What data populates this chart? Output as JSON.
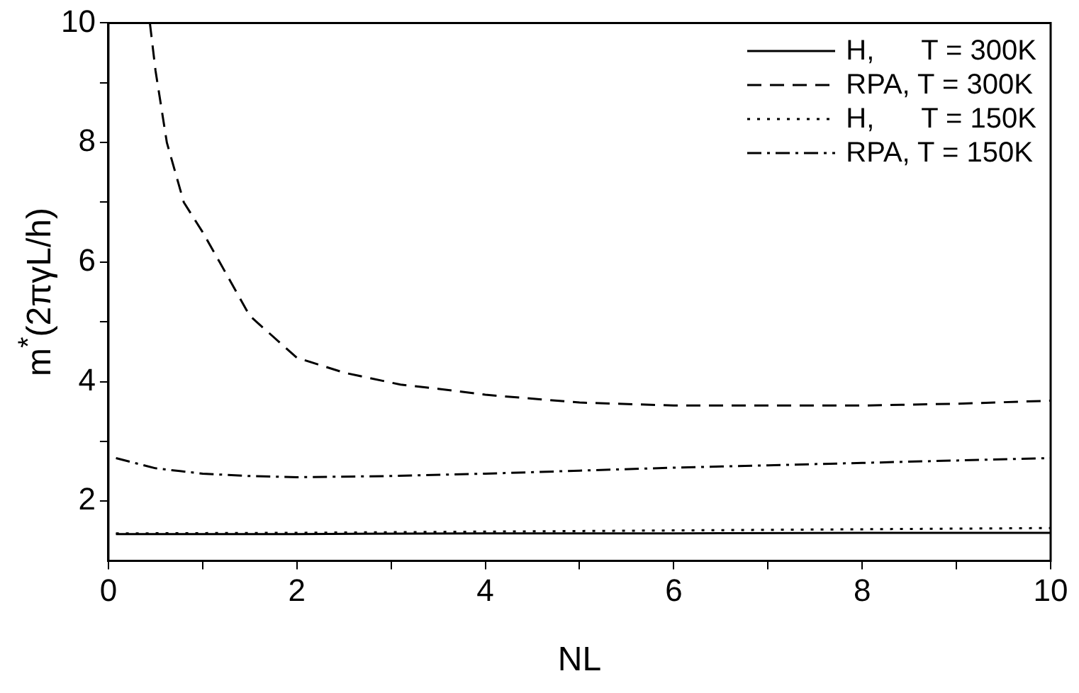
{
  "chart_data": {
    "type": "line",
    "xlabel": "NL",
    "ylabel": "m$^{*}$(2πγL/h)",
    "xlim": [
      0,
      10
    ],
    "ylim": [
      1,
      10
    ],
    "xticks": [
      0,
      {
        "value": 1,
        "label": null
      },
      2,
      {
        "value": 3,
        "label": null
      },
      4,
      {
        "value": 5,
        "label": null
      },
      6,
      {
        "value": 7,
        "label": null
      },
      8,
      {
        "value": 9,
        "label": null
      },
      10
    ],
    "yticks": [
      2,
      {
        "value": 3,
        "label": null
      },
      4,
      {
        "value": 5,
        "label": null
      },
      6,
      {
        "value": 7,
        "label": null
      },
      8,
      {
        "value": 9,
        "label": null
      },
      10
    ],
    "grid": false,
    "legend": "top right",
    "marker": "none",
    "series": [
      {
        "name": "H,      T = 300K",
        "color": "#000000",
        "line_style": "solid",
        "x": [
          0.08,
          2,
          4,
          6,
          8,
          10
        ],
        "values": [
          1.45,
          1.45,
          1.46,
          1.46,
          1.47,
          1.47
        ]
      },
      {
        "name": "RPA, T = 300K",
        "color": "#000000",
        "line_style": "dashed",
        "x": [
          0.44,
          0.5,
          0.62,
          0.8,
          1.0,
          1.18,
          1.5,
          2.0,
          2.5,
          3.1,
          3.5,
          4,
          5,
          6,
          7,
          8,
          9,
          10
        ],
        "values": [
          10,
          9.2,
          8,
          7,
          6.5,
          6,
          5.1,
          4.4,
          4.15,
          3.95,
          3.88,
          3.78,
          3.65,
          3.6,
          3.6,
          3.6,
          3.63,
          3.68
        ]
      },
      {
        "name": "H,      T = 150K",
        "color": "#000000",
        "line_style": "dotted",
        "x": [
          0.08,
          2,
          4,
          6,
          8,
          10
        ],
        "values": [
          1.46,
          1.47,
          1.49,
          1.51,
          1.53,
          1.55
        ]
      },
      {
        "name": "RPA, T = 150K",
        "color": "#000000",
        "line_style": "dashdot",
        "x": [
          0.08,
          0.5,
          1,
          1.5,
          2,
          3,
          4,
          5,
          6,
          7,
          8,
          9,
          10
        ],
        "values": [
          2.72,
          2.55,
          2.46,
          2.42,
          2.4,
          2.42,
          2.46,
          2.51,
          2.56,
          2.6,
          2.64,
          2.68,
          2.72
        ]
      }
    ]
  }
}
